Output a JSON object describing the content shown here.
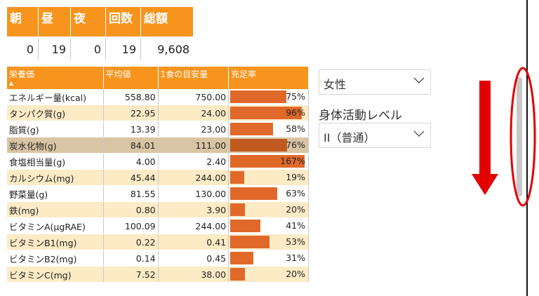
{
  "summary": {
    "headers": [
      "朝",
      "昼",
      "夜",
      "回数",
      "総額"
    ],
    "values": [
      "0",
      "19",
      "0",
      "19",
      "9,608"
    ]
  },
  "table": {
    "headers": [
      "栄養価",
      "平均値",
      "1食の目安量",
      "充足率"
    ],
    "sort_indicator": "▲",
    "rows": [
      {
        "name": "エネルギー量(kcal)",
        "avg": "558.80",
        "target": "750.00",
        "pct": "75%",
        "fill": 0.75
      },
      {
        "name": "タンパク質(g)",
        "avg": "22.95",
        "target": "24.00",
        "pct": "96%",
        "fill": 0.96
      },
      {
        "name": "脂質(g)",
        "avg": "13.39",
        "target": "23.00",
        "pct": "58%",
        "fill": 0.58
      },
      {
        "name": "炭水化物(g)",
        "avg": "84.01",
        "target": "111.00",
        "pct": "76%",
        "fill": 0.76
      },
      {
        "name": "食塩相当量(g)",
        "avg": "4.00",
        "target": "2.40",
        "pct": "167%",
        "fill": 1.0
      },
      {
        "name": "カルシウム(mg)",
        "avg": "45.44",
        "target": "244.00",
        "pct": "19%",
        "fill": 0.19
      },
      {
        "name": "野菜量(g)",
        "avg": "81.55",
        "target": "130.00",
        "pct": "63%",
        "fill": 0.63
      },
      {
        "name": "鉄(mg)",
        "avg": "0.80",
        "target": "3.90",
        "pct": "20%",
        "fill": 0.2
      },
      {
        "name": "ビタミンA(μgRAE)",
        "avg": "100.09",
        "target": "244.00",
        "pct": "41%",
        "fill": 0.41
      },
      {
        "name": "ビタミンB1(mg)",
        "avg": "0.22",
        "target": "0.41",
        "pct": "53%",
        "fill": 0.53
      },
      {
        "name": "ビタミンB2(mg)",
        "avg": "0.14",
        "target": "0.45",
        "pct": "31%",
        "fill": 0.31
      },
      {
        "name": "ビタミンC(mg)",
        "avg": "7.52",
        "target": "38.00",
        "pct": "20%",
        "fill": 0.2
      }
    ]
  },
  "filters": {
    "gender_value": "女性",
    "activity_label": "身体活動レベル",
    "activity_value": "II（普通）"
  },
  "icons": {
    "chevron": "chevron-down-icon",
    "arrow": "arrow-down-icon"
  },
  "colors": {
    "header": "#f7941d",
    "bar": "#e0692a",
    "stripe": "#fdebc6",
    "annotation": "#e30000"
  }
}
